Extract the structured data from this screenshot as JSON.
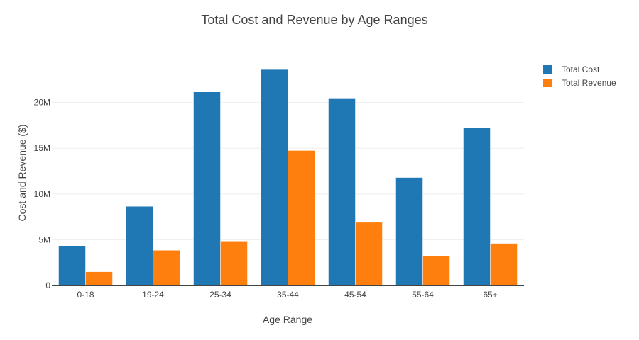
{
  "chart_data": {
    "type": "bar",
    "title": "Total Cost and Revenue by Age Ranges",
    "xlabel": "Age Range",
    "ylabel": "Cost and Revenue ($)",
    "categories": [
      "0-18",
      "19-24",
      "25-34",
      "35-44",
      "45-54",
      "55-64",
      "65+"
    ],
    "series": [
      {
        "name": "Total Cost",
        "color": "#1f77b4",
        "values": [
          4300000,
          8650000,
          21150000,
          23600000,
          20400000,
          11800000,
          17250000
        ]
      },
      {
        "name": "Total Revenue",
        "color": "#ff7f0e",
        "values": [
          1500000,
          3850000,
          4850000,
          14750000,
          6900000,
          3200000,
          4600000
        ]
      }
    ],
    "ylim": [
      0,
      25000000
    ],
    "yticks": [
      0,
      5000000,
      10000000,
      15000000,
      20000000
    ],
    "ytick_labels": [
      "0",
      "5M",
      "10M",
      "15M",
      "20M"
    ],
    "grid": true,
    "legend_position": "top-right"
  }
}
